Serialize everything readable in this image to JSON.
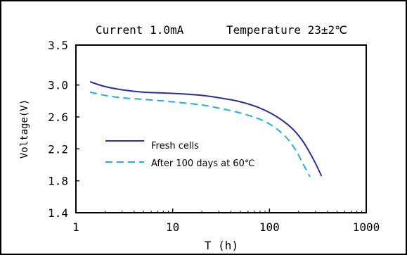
{
  "chart_data": {
    "type": "line",
    "header": {
      "current": "Current 1.0mA",
      "temperature": "Temperature 23±2℃"
    },
    "xlabel": "T (h)",
    "ylabel": "Voltage(V)",
    "x_scale": "log",
    "xlim": [
      1,
      1000
    ],
    "ylim": [
      1.4,
      3.5
    ],
    "x_ticks": [
      {
        "value": 1,
        "label": "1"
      },
      {
        "value": 10,
        "label": "10"
      },
      {
        "value": 100,
        "label": "100"
      },
      {
        "value": 1000,
        "label": "1000"
      }
    ],
    "y_ticks": [
      {
        "value": 3.5,
        "label": "3.5"
      },
      {
        "value": 3.0,
        "label": "3.0"
      },
      {
        "value": 2.6,
        "label": "2.6"
      },
      {
        "value": 2.2,
        "label": "2.2"
      },
      {
        "value": 1.8,
        "label": "1.8"
      },
      {
        "value": 1.4,
        "label": "1.4"
      }
    ],
    "grid": false,
    "legend_position": "lower-left",
    "series": [
      {
        "name": "Fresh cells",
        "color": "#2b2f8f",
        "dash": "solid",
        "x": [
          1.4,
          2,
          3,
          5,
          8,
          12,
          20,
          30,
          50,
          80,
          120,
          170,
          220,
          270,
          310,
          345
        ],
        "y": [
          3.04,
          2.98,
          2.94,
          2.91,
          2.9,
          2.89,
          2.87,
          2.84,
          2.79,
          2.71,
          2.6,
          2.46,
          2.3,
          2.12,
          1.98,
          1.86
        ]
      },
      {
        "name": "After 100 days at 60℃",
        "color": "#1eaee6",
        "dash": "dashed",
        "x": [
          1.4,
          2,
          3,
          5,
          8,
          12,
          20,
          30,
          50,
          80,
          110,
          150,
          190,
          225,
          250,
          262
        ],
        "y": [
          2.91,
          2.87,
          2.84,
          2.82,
          2.8,
          2.78,
          2.75,
          2.71,
          2.65,
          2.57,
          2.48,
          2.34,
          2.17,
          2.0,
          1.9,
          1.85
        ]
      }
    ]
  }
}
